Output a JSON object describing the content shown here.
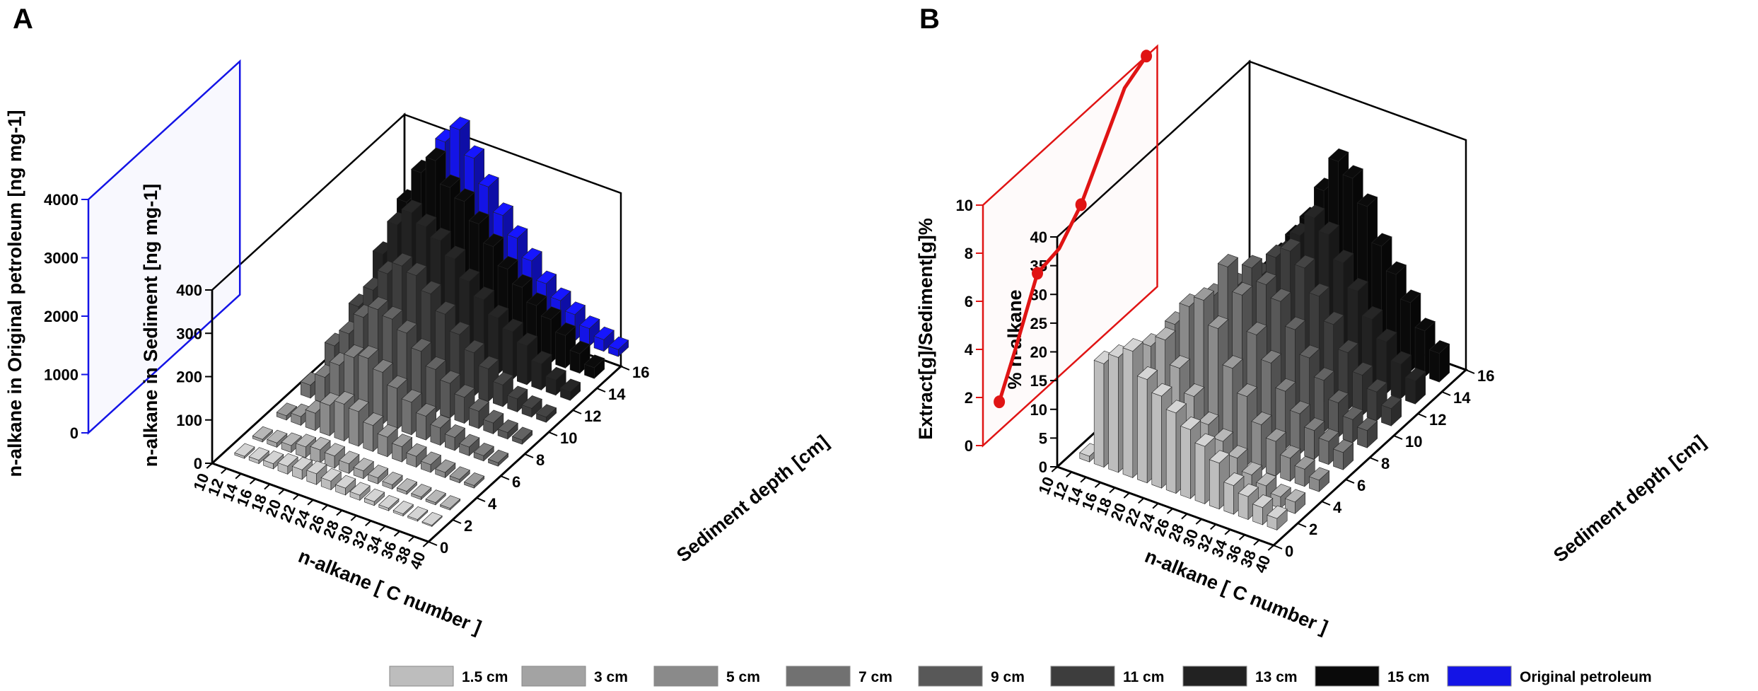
{
  "panels": {
    "A": {
      "letter": "A"
    },
    "B": {
      "letter": "B"
    }
  },
  "legend": {
    "items": [
      {
        "label": "1.5 cm",
        "color": "#bdbdbd"
      },
      {
        "label": "3 cm",
        "color": "#a3a3a3"
      },
      {
        "label": "5 cm",
        "color": "#8a8a8a"
      },
      {
        "label": "7 cm",
        "color": "#717171"
      },
      {
        "label": "9 cm",
        "color": "#585858"
      },
      {
        "label": "11 cm",
        "color": "#3d3d3d"
      },
      {
        "label": "13 cm",
        "color": "#222222"
      },
      {
        "label": "15 cm",
        "color": "#0a0a0a"
      },
      {
        "label": "Original petroleum",
        "color": "#1414e6"
      }
    ]
  },
  "colors": {
    "blue": "#1414e6",
    "red": "#e01414",
    "black": "#000000"
  },
  "chart_data": [
    {
      "panel": "A",
      "type": "bar3d",
      "xlabel": "n-alkane [ C number ]",
      "x_ticks": [
        "10",
        "12",
        "14",
        "16",
        "18",
        "20",
        "22",
        "24",
        "26",
        "28",
        "30",
        "32",
        "34",
        "36",
        "38",
        "40"
      ],
      "ylabel": "Sediment depth [cm]",
      "y_ticks": [
        "0",
        "2",
        "4",
        "6",
        "8",
        "10",
        "12",
        "14",
        "16"
      ],
      "zlabel": "n-alkane in Sediment [ng mg-1]",
      "z_ticks": [
        "0",
        "100",
        "200",
        "300",
        "400"
      ],
      "zlim": [
        0,
        400
      ],
      "secondary_zlabel": "n-alkane in Original petroleum [ng mg-1]",
      "secondary_z_ticks": [
        "0",
        "1000",
        "2000",
        "3000",
        "4000"
      ],
      "secondary_zlim": [
        0,
        4000
      ],
      "depths": [
        "1.5 cm",
        "3 cm",
        "5 cm",
        "7 cm",
        "9 cm",
        "11 cm",
        "13 cm",
        "15 cm"
      ],
      "carbon_numbers": [
        12,
        14,
        16,
        18,
        20,
        22,
        24,
        26,
        28,
        30,
        32,
        34,
        36,
        38
      ],
      "series": [
        {
          "name": "1.5 cm",
          "depth_cm": 1.5,
          "values": [
            5,
            8,
            12,
            18,
            22,
            25,
            20,
            16,
            12,
            9,
            6,
            5,
            4,
            3
          ]
        },
        {
          "name": "3 cm",
          "depth_cm": 3,
          "values": [
            6,
            10,
            16,
            25,
            30,
            28,
            22,
            18,
            14,
            10,
            7,
            6,
            5,
            4
          ]
        },
        {
          "name": "5 cm",
          "depth_cm": 5,
          "values": [
            10,
            20,
            40,
            70,
            85,
            80,
            60,
            45,
            35,
            25,
            18,
            12,
            8,
            6
          ]
        },
        {
          "name": "7 cm",
          "depth_cm": 7,
          "values": [
            30,
            60,
            100,
            130,
            140,
            120,
            95,
            75,
            55,
            40,
            30,
            20,
            12,
            8
          ]
        },
        {
          "name": "9 cm",
          "depth_cm": 9,
          "values": [
            70,
            110,
            160,
            190,
            180,
            160,
            130,
            100,
            80,
            60,
            40,
            25,
            15,
            10
          ]
        },
        {
          "name": "11 cm",
          "depth_cm": 11,
          "values": [
            110,
            160,
            210,
            240,
            230,
            200,
            165,
            130,
            100,
            75,
            50,
            30,
            20,
            12
          ]
        },
        {
          "name": "13 cm",
          "depth_cm": 13,
          "values": [
            180,
            260,
            300,
            280,
            260,
            230,
            190,
            160,
            130,
            110,
            90,
            60,
            35,
            20
          ]
        },
        {
          "name": "15 cm",
          "depth_cm": 15,
          "values": [
            250,
            330,
            370,
            320,
            300,
            260,
            220,
            180,
            150,
            120,
            100,
            75,
            45,
            25
          ]
        },
        {
          "name": "Original petroleum",
          "depth_cm": 17,
          "axis": "secondary",
          "values": [
            1500,
            2600,
            2900,
            2500,
            2100,
            1700,
            1400,
            1100,
            800,
            600,
            450,
            300,
            200,
            120
          ]
        }
      ]
    },
    {
      "panel": "B",
      "type": "bar3d",
      "xlabel": "n-alkane [ C number ]",
      "x_ticks": [
        "10",
        "12",
        "14",
        "16",
        "18",
        "20",
        "22",
        "24",
        "26",
        "28",
        "30",
        "32",
        "34",
        "36",
        "38",
        "40"
      ],
      "ylabel": "Sediment depth [cm]",
      "y_ticks": [
        "0",
        "2",
        "4",
        "6",
        "8",
        "10",
        "12",
        "14",
        "16"
      ],
      "zlabel": "% n-alkane",
      "z_ticks": [
        "0",
        "5",
        "10",
        "15",
        "20",
        "25",
        "30",
        "35",
        "40"
      ],
      "zlim": [
        0,
        40
      ],
      "secondary_zlabel": "Extract[g]/Sediment[g]%",
      "secondary_z_ticks": [
        "0",
        "2",
        "4",
        "6",
        "8",
        "10"
      ],
      "secondary_zlim": [
        0,
        10
      ],
      "depths": [
        "1.5 cm",
        "3 cm",
        "5 cm",
        "7 cm",
        "9 cm",
        "11 cm",
        "13 cm",
        "15 cm"
      ],
      "carbon_numbers": [
        12,
        14,
        16,
        18,
        20,
        22,
        24,
        26,
        28,
        30,
        32,
        34,
        36,
        38
      ],
      "series": [
        {
          "name": "1.5 cm",
          "depth_cm": 1.5,
          "values": [
            1,
            18,
            20,
            22,
            18,
            16,
            14,
            12,
            10,
            8,
            5,
            4,
            3,
            2
          ]
        },
        {
          "name": "3 cm",
          "depth_cm": 3,
          "values": [
            1,
            12,
            16,
            20,
            22,
            18,
            14,
            10,
            8,
            6,
            4,
            3,
            2,
            2
          ]
        },
        {
          "name": "5 cm",
          "depth_cm": 5,
          "values": [
            2,
            8,
            14,
            20,
            24,
            26,
            22,
            16,
            12,
            8,
            6,
            4,
            3,
            2
          ]
        },
        {
          "name": "7 cm",
          "depth_cm": 7,
          "values": [
            2,
            6,
            12,
            18,
            22,
            28,
            24,
            18,
            14,
            10,
            7,
            5,
            4,
            3
          ]
        },
        {
          "name": "9 cm",
          "depth_cm": 9,
          "values": [
            2,
            5,
            10,
            16,
            20,
            24,
            22,
            20,
            16,
            12,
            9,
            6,
            4,
            3
          ]
        },
        {
          "name": "11 cm",
          "depth_cm": 11,
          "values": [
            2,
            5,
            9,
            14,
            18,
            22,
            24,
            22,
            18,
            14,
            10,
            7,
            5,
            3
          ]
        },
        {
          "name": "13 cm",
          "depth_cm": 13,
          "values": [
            2,
            6,
            10,
            14,
            18,
            22,
            26,
            24,
            20,
            16,
            12,
            9,
            6,
            4
          ]
        },
        {
          "name": "15 cm",
          "depth_cm": 15,
          "values": [
            3,
            8,
            12,
            16,
            20,
            26,
            32,
            30,
            26,
            20,
            16,
            12,
            8,
            5
          ]
        }
      ],
      "line_series": {
        "name": "Extract[g]/Sediment[g]%",
        "axis": "secondary",
        "depths_cm": [
          1.5,
          3,
          5,
          7,
          9,
          11,
          13,
          15
        ],
        "values": [
          1.2,
          2.8,
          5.1,
          5.3,
          6.3,
          7.9,
          9.5,
          10.0
        ]
      }
    }
  ]
}
